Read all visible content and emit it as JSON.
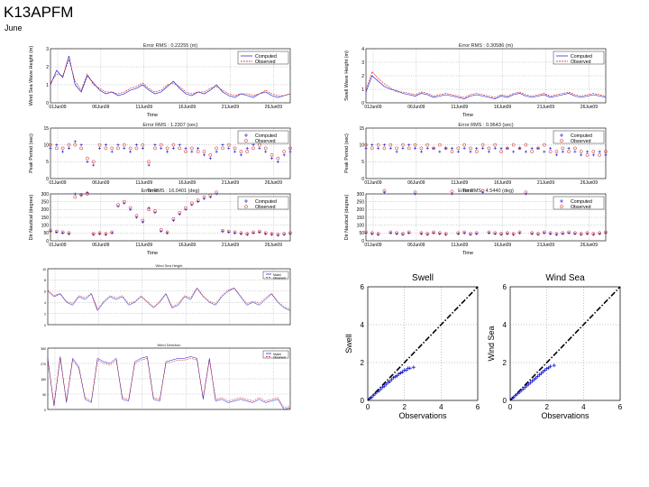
{
  "header": {
    "title": "K13APFM",
    "subtitle": "June"
  },
  "legend": {
    "computed": "Computed",
    "observed": "Observed"
  },
  "colors": {
    "computed": "#1010d0",
    "observed": "#d01010",
    "axis": "#000000",
    "grid": "#888888"
  },
  "left_xticks": [
    "01Jun09",
    "06Jun09",
    "11Jun09",
    "16Jun09",
    "21Jun09",
    "26Jun09"
  ],
  "chart_data": [
    {
      "id": "lw",
      "type": "line",
      "title": "Error RMS : 0.22255 (m)",
      "ylabel": "Wind Sea Wave Height (m)",
      "xlabel": "Time",
      "ylim": [
        0,
        3
      ],
      "yticks": [
        0,
        1,
        2,
        3
      ],
      "style": "line",
      "series": [
        {
          "name": "Computed",
          "values": [
            1.0,
            1.8,
            1.4,
            2.6,
            1.0,
            0.6,
            1.5,
            1.1,
            0.7,
            0.5,
            0.6,
            0.4,
            0.5,
            0.7,
            0.8,
            1.0,
            0.7,
            0.5,
            0.6,
            0.9,
            1.2,
            0.8,
            0.5,
            0.4,
            0.6,
            0.5,
            0.7,
            1.0,
            0.6,
            0.4,
            0.3,
            0.5,
            0.4,
            0.3,
            0.5,
            0.6,
            0.4,
            0.3,
            0.4,
            0.5
          ]
        },
        {
          "name": "Observed",
          "values": [
            1.1,
            1.6,
            1.5,
            2.4,
            1.2,
            0.7,
            1.6,
            1.0,
            0.8,
            0.6,
            0.6,
            0.5,
            0.6,
            0.8,
            0.9,
            1.1,
            0.8,
            0.6,
            0.7,
            1.0,
            1.1,
            0.9,
            0.6,
            0.5,
            0.6,
            0.6,
            0.8,
            0.9,
            0.7,
            0.5,
            0.4,
            0.5,
            0.5,
            0.4,
            0.5,
            0.7,
            0.5,
            0.4,
            0.4,
            0.5
          ]
        }
      ]
    },
    {
      "id": "lp",
      "type": "scatter",
      "title": "Error RMS : 1.2307 (sec)",
      "ylabel": "Peak Period (sec)",
      "xlabel": "Time",
      "ylim": [
        0,
        15
      ],
      "yticks": [
        0,
        5,
        10,
        15
      ],
      "style": "marker",
      "series": [
        {
          "name": "Computed",
          "values": [
            9,
            10,
            8,
            9,
            11,
            10,
            5,
            4,
            9,
            10,
            8,
            10,
            9,
            8,
            10,
            9,
            4,
            10,
            9,
            8,
            9,
            10,
            9,
            8,
            9,
            7,
            6,
            8,
            10,
            9,
            8,
            7,
            9,
            10,
            9,
            8,
            6,
            5,
            7,
            8
          ]
        },
        {
          "name": "Observed",
          "values": [
            10,
            9,
            9,
            10,
            10,
            9,
            6,
            5,
            10,
            9,
            9,
            9,
            10,
            9,
            9,
            10,
            5,
            9,
            10,
            9,
            10,
            9,
            8,
            9,
            8,
            8,
            7,
            9,
            9,
            10,
            9,
            8,
            8,
            9,
            10,
            9,
            7,
            6,
            8,
            9
          ]
        }
      ]
    },
    {
      "id": "ld",
      "type": "scatter",
      "title": "Error RMS : 16.0401 (deg)",
      "ylabel": "Dir Nautical (degree)",
      "xlabel": "Time",
      "ylim": [
        0,
        300
      ],
      "yticks": [
        0,
        50,
        100,
        150,
        200,
        250,
        300
      ],
      "style": "marker",
      "series": [
        {
          "name": "Computed",
          "values": [
            60,
            55,
            50,
            45,
            300,
            290,
            310,
            40,
            45,
            40,
            50,
            220,
            240,
            200,
            150,
            120,
            210,
            180,
            60,
            50,
            130,
            170,
            200,
            230,
            250,
            270,
            280,
            300,
            60,
            55,
            50,
            45,
            40,
            50,
            55,
            45,
            40,
            35,
            40,
            45
          ]
        },
        {
          "name": "Observed",
          "values": [
            65,
            60,
            55,
            50,
            280,
            295,
            300,
            45,
            50,
            45,
            55,
            230,
            250,
            210,
            160,
            130,
            200,
            190,
            70,
            55,
            140,
            180,
            210,
            240,
            260,
            280,
            290,
            310,
            65,
            60,
            55,
            50,
            45,
            55,
            60,
            50,
            45,
            40,
            45,
            50
          ]
        }
      ]
    },
    {
      "id": "rw",
      "type": "line",
      "title": "Error RMS : 0.30586 (m)",
      "ylabel": "Swell Wave Height (m)",
      "xlabel": "Time",
      "ylim": [
        0,
        4
      ],
      "yticks": [
        0,
        1,
        2,
        3,
        4
      ],
      "style": "line",
      "series": [
        {
          "name": "Computed",
          "values": [
            0.8,
            2.0,
            1.6,
            1.2,
            1.0,
            0.9,
            0.7,
            0.6,
            0.5,
            0.7,
            0.6,
            0.4,
            0.5,
            0.6,
            0.5,
            0.4,
            0.3,
            0.5,
            0.6,
            0.5,
            0.4,
            0.3,
            0.5,
            0.4,
            0.6,
            0.7,
            0.5,
            0.4,
            0.5,
            0.6,
            0.4,
            0.5,
            0.6,
            0.7,
            0.5,
            0.4,
            0.5,
            0.6,
            0.5,
            0.4
          ]
        },
        {
          "name": "Observed",
          "values": [
            1.0,
            2.3,
            1.8,
            1.4,
            1.1,
            0.8,
            0.8,
            0.7,
            0.6,
            0.8,
            0.7,
            0.5,
            0.6,
            0.7,
            0.6,
            0.5,
            0.4,
            0.6,
            0.7,
            0.6,
            0.5,
            0.4,
            0.6,
            0.5,
            0.7,
            0.8,
            0.6,
            0.5,
            0.6,
            0.7,
            0.5,
            0.6,
            0.7,
            0.8,
            0.6,
            0.5,
            0.6,
            0.7,
            0.6,
            0.5
          ]
        }
      ]
    },
    {
      "id": "rp",
      "type": "scatter",
      "title": "Error RMS : 0.9643 (sec)",
      "ylabel": "Peak Period (sec)",
      "xlabel": "Time",
      "ylim": [
        0,
        15
      ],
      "yticks": [
        0,
        5,
        10,
        15
      ],
      "style": "marker",
      "series": [
        {
          "name": "Computed",
          "values": [
            9,
            10,
            9,
            10,
            9,
            8,
            9,
            10,
            9,
            8,
            9,
            9,
            8,
            9,
            9,
            8,
            9,
            8,
            9,
            9,
            8,
            9,
            9,
            9,
            8,
            9,
            8,
            9,
            9,
            8,
            9,
            7,
            8,
            9,
            8,
            7,
            8,
            7,
            8,
            7
          ]
        },
        {
          "name": "Observed",
          "values": [
            10,
            9,
            10,
            9,
            10,
            9,
            10,
            9,
            10,
            9,
            10,
            9,
            10,
            9,
            8,
            9,
            10,
            9,
            8,
            10,
            9,
            10,
            8,
            9,
            10,
            9,
            10,
            8,
            9,
            10,
            8,
            8,
            9,
            8,
            9,
            8,
            7,
            8,
            7,
            8
          ]
        }
      ]
    },
    {
      "id": "rd",
      "type": "scatter",
      "title": "Error RMS : 4.5440 (deg)",
      "ylabel": "Dir Nautical (degree)",
      "xlabel": "Time",
      "ylim": [
        0,
        300
      ],
      "yticks": [
        0,
        50,
        100,
        150,
        200,
        250,
        300
      ],
      "style": "marker",
      "series": [
        {
          "name": "Computed",
          "values": [
            50,
            45,
            40,
            310,
            50,
            45,
            40,
            50,
            300,
            45,
            40,
            50,
            45,
            40,
            300,
            45,
            50,
            40,
            45,
            310,
            50,
            45,
            40,
            45,
            40,
            50,
            300,
            45,
            40,
            50,
            45,
            40,
            45,
            50,
            45,
            40,
            45,
            40,
            45,
            50
          ]
        },
        {
          "name": "Observed",
          "values": [
            55,
            50,
            45,
            320,
            55,
            50,
            45,
            55,
            310,
            50,
            45,
            55,
            50,
            45,
            315,
            50,
            55,
            45,
            50,
            320,
            55,
            50,
            45,
            50,
            45,
            55,
            310,
            50,
            45,
            55,
            50,
            45,
            50,
            55,
            50,
            45,
            50,
            45,
            50,
            55
          ]
        }
      ]
    },
    {
      "id": "s1",
      "type": "line",
      "title": "Wind Sea Height",
      "ylabel": "",
      "xlabel": "",
      "ylim": [
        0,
        10
      ],
      "yticks": [
        0,
        2,
        4,
        6,
        8,
        10
      ],
      "style": "line",
      "small": true,
      "legend_labels": [
        "Model",
        "Observed"
      ],
      "series": [
        {
          "name": "Model",
          "values": [
            6,
            5,
            5.5,
            4,
            3.5,
            5,
            4.5,
            5.5,
            2.5,
            4,
            5,
            4.5,
            5,
            3.5,
            4,
            5,
            4,
            3,
            4,
            5.5,
            3,
            3.5,
            5,
            4.5,
            6.5,
            5,
            4,
            3.5,
            5,
            6,
            6.5,
            5,
            3.5,
            4,
            3.5,
            4.5,
            5.5,
            4,
            3,
            2.5
          ]
        },
        {
          "name": "Observed",
          "values": [
            6.2,
            5.2,
            5.6,
            4.2,
            3.8,
            5.2,
            4.8,
            5.6,
            2.8,
            4.2,
            5.2,
            4.8,
            5.2,
            3.8,
            4.2,
            5.2,
            4.2,
            3.2,
            4.2,
            5.6,
            3.2,
            3.8,
            5.2,
            4.8,
            6.6,
            5.2,
            4.2,
            3.8,
            5.2,
            6.2,
            6.6,
            5.2,
            3.8,
            4.2,
            3.8,
            4.8,
            5.6,
            4.2,
            3.2,
            2.8
          ]
        }
      ]
    },
    {
      "id": "s2",
      "type": "line",
      "title": "Wind Direction",
      "ylabel": "",
      "xlabel": "",
      "ylim": [
        0,
        360
      ],
      "yticks": [
        0,
        90,
        180,
        270,
        360
      ],
      "style": "line",
      "small": true,
      "legend_labels": [
        "Model",
        "Observed"
      ],
      "series": [
        {
          "name": "Model",
          "values": [
            300,
            20,
            310,
            40,
            300,
            250,
            60,
            40,
            300,
            280,
            270,
            300,
            60,
            50,
            280,
            300,
            310,
            60,
            50,
            280,
            290,
            300,
            300,
            310,
            300,
            60,
            300,
            50,
            60,
            40,
            50,
            60,
            50,
            40,
            60,
            40,
            50,
            60,
            0,
            10
          ]
        },
        {
          "name": "Observed",
          "values": [
            290,
            30,
            300,
            50,
            290,
            240,
            70,
            50,
            290,
            270,
            260,
            290,
            70,
            60,
            270,
            290,
            300,
            70,
            60,
            270,
            280,
            290,
            290,
            300,
            290,
            70,
            290,
            60,
            70,
            50,
            60,
            70,
            60,
            50,
            70,
            50,
            60,
            70,
            10,
            20
          ]
        }
      ]
    }
  ],
  "scatter_plots": [
    {
      "id": "sw",
      "title": "Swell",
      "xlabel": "Observations",
      "ylabel": "Swell",
      "xlim": [
        0,
        6
      ],
      "ylim": [
        0,
        6
      ],
      "ticks": [
        0,
        2,
        4,
        6
      ],
      "points": [
        [
          0.1,
          0.1
        ],
        [
          0.2,
          0.15
        ],
        [
          0.3,
          0.25
        ],
        [
          0.4,
          0.35
        ],
        [
          0.5,
          0.45
        ],
        [
          0.6,
          0.5
        ],
        [
          0.7,
          0.6
        ],
        [
          0.8,
          0.7
        ],
        [
          0.9,
          0.75
        ],
        [
          1.0,
          0.85
        ],
        [
          1.1,
          0.95
        ],
        [
          1.2,
          1.0
        ],
        [
          1.3,
          1.1
        ],
        [
          1.4,
          1.2
        ],
        [
          1.5,
          1.25
        ],
        [
          1.6,
          1.3
        ],
        [
          1.7,
          1.4
        ],
        [
          1.8,
          1.45
        ],
        [
          1.9,
          1.5
        ],
        [
          2.0,
          1.6
        ],
        [
          2.1,
          1.6
        ],
        [
          2.2,
          1.7
        ],
        [
          2.3,
          1.7
        ],
        [
          2.5,
          1.75
        ]
      ]
    },
    {
      "id": "ws",
      "title": "Wind Sea",
      "xlabel": "Observations",
      "ylabel": "Wind Sea",
      "xlim": [
        0,
        6
      ],
      "ylim": [
        0,
        6
      ],
      "ticks": [
        0,
        2,
        4,
        6
      ],
      "points": [
        [
          0.1,
          0.1
        ],
        [
          0.2,
          0.18
        ],
        [
          0.3,
          0.27
        ],
        [
          0.4,
          0.35
        ],
        [
          0.5,
          0.43
        ],
        [
          0.6,
          0.52
        ],
        [
          0.7,
          0.6
        ],
        [
          0.8,
          0.68
        ],
        [
          0.9,
          0.77
        ],
        [
          1.0,
          0.85
        ],
        [
          1.1,
          0.93
        ],
        [
          1.2,
          1.02
        ],
        [
          1.3,
          1.1
        ],
        [
          1.4,
          1.18
        ],
        [
          1.5,
          1.27
        ],
        [
          1.6,
          1.35
        ],
        [
          1.7,
          1.43
        ],
        [
          1.8,
          1.52
        ],
        [
          1.9,
          1.6
        ],
        [
          2.0,
          1.68
        ],
        [
          2.1,
          1.72
        ],
        [
          2.2,
          1.8
        ],
        [
          2.4,
          1.85
        ]
      ]
    }
  ]
}
